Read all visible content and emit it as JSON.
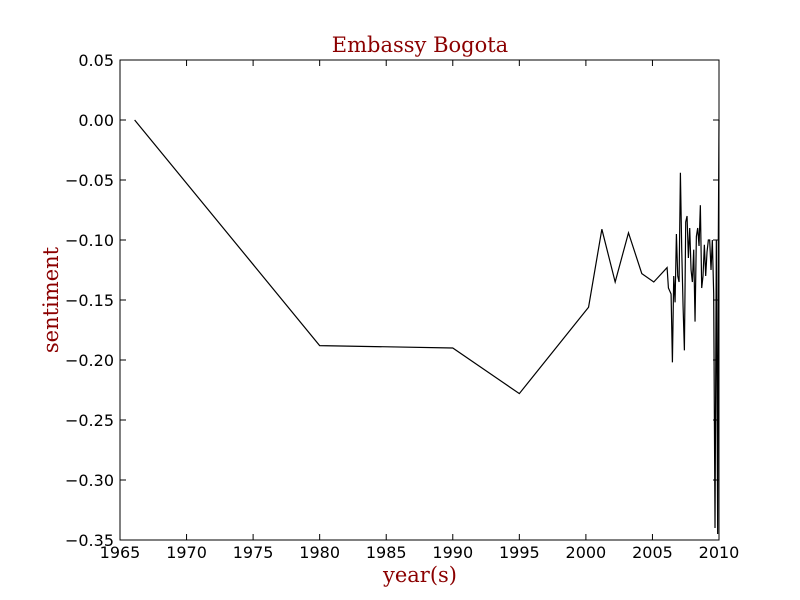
{
  "chart_data": {
    "type": "line",
    "title": "Embassy Bogota",
    "xlabel": "year(s)",
    "ylabel": "sentiment",
    "xlim": [
      1965,
      2010
    ],
    "ylim": [
      -0.35,
      0.05
    ],
    "xticks": [
      1965,
      1970,
      1975,
      1980,
      1985,
      1990,
      1995,
      2000,
      2005,
      2010
    ],
    "xtick_labels": [
      "1965",
      "1970",
      "1975",
      "1980",
      "1985",
      "1990",
      "1995",
      "2000",
      "2005",
      "2010"
    ],
    "yticks": [
      0.05,
      0.0,
      -0.05,
      -0.1,
      -0.15,
      -0.2,
      -0.25,
      -0.3,
      -0.35
    ],
    "ytick_labels": [
      "0.05",
      "0.00",
      "−0.05",
      "−0.10",
      "−0.15",
      "−0.20",
      "−0.25",
      "−0.30",
      "−0.35"
    ],
    "grid": false,
    "series": [
      {
        "x": [
          1966.1,
          1980.0,
          1990.0,
          1995.0,
          2000.2,
          2001.2,
          2002.2,
          2003.2,
          2004.2,
          2005.1,
          2006.1,
          2006.2,
          2006.4,
          2006.5,
          2006.6,
          2006.7,
          2006.8,
          2006.9,
          2007.0,
          2007.1,
          2007.2,
          2007.3,
          2007.4,
          2007.5,
          2007.6,
          2007.7,
          2007.8,
          2007.9,
          2008.0,
          2008.1,
          2008.2,
          2008.3,
          2008.4,
          2008.5,
          2008.6,
          2008.7,
          2008.8,
          2008.9,
          2009.0,
          2009.1,
          2009.2,
          2009.3,
          2009.4,
          2009.5,
          2009.6,
          2009.7,
          2009.8,
          2009.9,
          2009.95,
          2010.0
        ],
        "y": [
          0.0,
          -0.188,
          -0.19,
          -0.228,
          -0.156,
          -0.091,
          -0.135,
          -0.094,
          -0.128,
          -0.135,
          -0.123,
          -0.14,
          -0.145,
          -0.202,
          -0.13,
          -0.152,
          -0.095,
          -0.13,
          -0.135,
          -0.044,
          -0.108,
          -0.155,
          -0.192,
          -0.085,
          -0.08,
          -0.115,
          -0.09,
          -0.125,
          -0.135,
          -0.108,
          -0.168,
          -0.097,
          -0.09,
          -0.105,
          -0.071,
          -0.14,
          -0.13,
          -0.104,
          -0.13,
          -0.11,
          -0.1,
          -0.1,
          -0.125,
          -0.1,
          -0.145,
          -0.34,
          -0.1,
          -0.345,
          -0.1,
          0.0
        ]
      }
    ]
  },
  "colors": {
    "line": "#000000",
    "title": "#8b0000",
    "axis_title": "#8b0000"
  }
}
